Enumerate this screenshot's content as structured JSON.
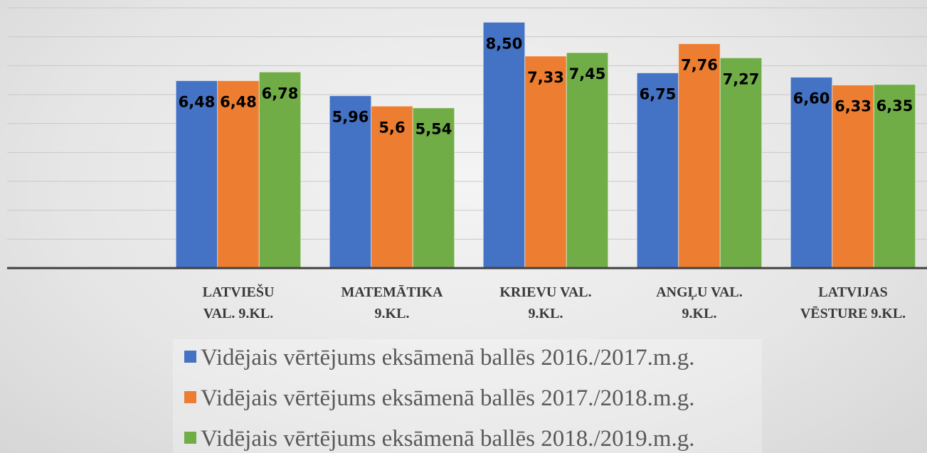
{
  "chart_data": {
    "type": "bar",
    "categories": [
      "LATVIEŠU\nVAL. 9.KL.",
      "MATEMĀTIKA\n9.KL.",
      "KRIEVU VAL.\n9.KL.",
      "ANGĻU VAL.\n9.KL.",
      "LATVIJAS\nVĒSTURE 9.KL."
    ],
    "series": [
      {
        "name": "Vidējais vērtējums eksāmenā ballēs 2016./2017.m.g.",
        "color": "#4472c4",
        "values": [
          6.48,
          5.96,
          8.5,
          6.75,
          6.6
        ],
        "value_labels": [
          "6,48",
          "5,96",
          "8,50",
          "6,75",
          "6,60"
        ]
      },
      {
        "name": "Vidējais vērtējums eksāmenā ballēs 2017./2018.m.g.",
        "color": "#ed7d31",
        "values": [
          6.48,
          5.6,
          7.33,
          7.76,
          6.33
        ],
        "value_labels": [
          "6,48",
          "5,6",
          "7,33",
          "7,76",
          "6,33"
        ]
      },
      {
        "name": "Vidējais vērtējums eksāmenā ballēs 2018./2019.m.g.",
        "color": "#70ad47",
        "values": [
          6.78,
          5.54,
          7.45,
          7.27,
          6.35
        ],
        "value_labels": [
          "6,78",
          "5,54",
          "7,45",
          "7,27",
          "6,35"
        ]
      }
    ],
    "ylim": [
      0,
      9
    ],
    "yticks": [
      0,
      1,
      2,
      3,
      4,
      5,
      6,
      7,
      8,
      9
    ],
    "grid": true
  }
}
